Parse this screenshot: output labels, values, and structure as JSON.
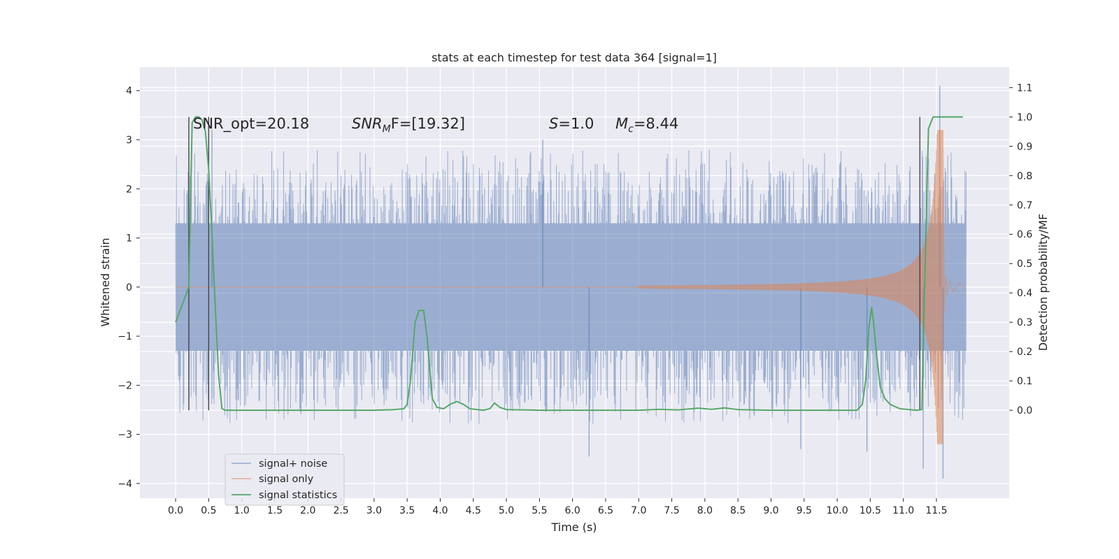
{
  "chart_data": {
    "type": "line",
    "title": "stats at each timestep for test data 364 [signal=1]",
    "xlabel": "Time (s)",
    "ylabel": "Whitened strain",
    "y2label": "Detection probability/MF",
    "xlim": [
      -0.54,
      12.6
    ],
    "ylim": [
      -4.3,
      4.48
    ],
    "y2lim": [
      -0.3,
      1.17
    ],
    "xticks": [
      "0.0",
      "0.5",
      "1.0",
      "1.5",
      "2.0",
      "2.5",
      "3.0",
      "3.5",
      "4.0",
      "4.5",
      "5.0",
      "5.5",
      "6.0",
      "6.5",
      "7.0",
      "7.5",
      "8.0",
      "8.5",
      "9.0",
      "9.5",
      "10.0",
      "10.5",
      "11.0",
      "11.5"
    ],
    "yticks": [
      "4",
      "3",
      "2",
      "1",
      "0",
      "−1",
      "−2",
      "−3",
      "−4"
    ],
    "y2ticks": [
      "1.1",
      "1.0",
      "0.9",
      "0.8",
      "0.7",
      "0.6",
      "0.5",
      "0.4",
      "0.3",
      "0.2",
      "0.1",
      "0.0"
    ],
    "grid": true,
    "legend_position": "lower-left",
    "annotations": {
      "snr_opt": "SNR_opt=20.18",
      "snr_mf_label": "SNR",
      "snr_mf_sub": "M",
      "snr_mf_tail": "F=[19.32]",
      "s_label": "S",
      "s_value": "=1.0",
      "mc_label": "M",
      "mc_sub": "c",
      "mc_value": "=8.44"
    },
    "vertical_markers": [
      0.2,
      0.5,
      11.25
    ],
    "series": [
      {
        "name": "signal+ noise",
        "color": "#4c72b0",
        "kind": "noise",
        "t_start": 0.0,
        "t_end": 11.95,
        "envelope_core": 1.3,
        "typical_peak": 2.4,
        "extreme_points": [
          [
            0.55,
            3.2
          ],
          [
            5.55,
            3.0
          ],
          [
            11.55,
            4.1
          ],
          [
            6.25,
            -3.45
          ],
          [
            9.45,
            -3.3
          ],
          [
            10.45,
            -3.35
          ],
          [
            11.3,
            -3.7
          ],
          [
            11.6,
            -3.9
          ]
        ]
      },
      {
        "name": "signal only",
        "color": "#dd8452",
        "kind": "chirp",
        "t_start": 7.0,
        "t_merger": 11.6,
        "amp_start": 0.03,
        "amp_peak": 3.2
      },
      {
        "name": "signal statistics",
        "color": "#55a868",
        "axis": "right",
        "points": [
          [
            0.0,
            0.3
          ],
          [
            0.2,
            0.42
          ],
          [
            0.25,
            0.98
          ],
          [
            0.3,
            1.0
          ],
          [
            0.35,
            1.0
          ],
          [
            0.4,
            0.99
          ],
          [
            0.45,
            0.95
          ],
          [
            0.5,
            0.82
          ],
          [
            0.55,
            0.6
          ],
          [
            0.6,
            0.35
          ],
          [
            0.65,
            0.12
          ],
          [
            0.7,
            0.005
          ],
          [
            0.75,
            0.0
          ],
          [
            1.0,
            0.0
          ],
          [
            2.0,
            0.0
          ],
          [
            3.0,
            0.0
          ],
          [
            3.3,
            0.002
          ],
          [
            3.45,
            0.005
          ],
          [
            3.5,
            0.02
          ],
          [
            3.55,
            0.1
          ],
          [
            3.62,
            0.3
          ],
          [
            3.68,
            0.34
          ],
          [
            3.75,
            0.34
          ],
          [
            3.8,
            0.25
          ],
          [
            3.88,
            0.04
          ],
          [
            3.95,
            0.01
          ],
          [
            4.05,
            0.005
          ],
          [
            4.15,
            0.02
          ],
          [
            4.25,
            0.03
          ],
          [
            4.35,
            0.02
          ],
          [
            4.45,
            0.005
          ],
          [
            4.65,
            0.0
          ],
          [
            4.75,
            0.005
          ],
          [
            4.82,
            0.025
          ],
          [
            4.9,
            0.01
          ],
          [
            5.0,
            0.002
          ],
          [
            5.5,
            0.0
          ],
          [
            6.5,
            0.0
          ],
          [
            7.0,
            0.0
          ],
          [
            7.3,
            0.003
          ],
          [
            7.6,
            0.001
          ],
          [
            7.9,
            0.007
          ],
          [
            8.1,
            0.003
          ],
          [
            8.3,
            0.008
          ],
          [
            8.5,
            0.002
          ],
          [
            9.0,
            0.0
          ],
          [
            10.3,
            0.0
          ],
          [
            10.38,
            0.02
          ],
          [
            10.43,
            0.1
          ],
          [
            10.48,
            0.28
          ],
          [
            10.52,
            0.35
          ],
          [
            10.55,
            0.3
          ],
          [
            10.6,
            0.18
          ],
          [
            10.65,
            0.08
          ],
          [
            10.72,
            0.04
          ],
          [
            10.8,
            0.02
          ],
          [
            10.95,
            0.005
          ],
          [
            11.2,
            0.0
          ],
          [
            11.28,
            0.002
          ],
          [
            11.33,
            0.5
          ],
          [
            11.38,
            0.96
          ],
          [
            11.45,
            1.0
          ],
          [
            11.6,
            1.0
          ],
          [
            11.9,
            1.0
          ]
        ]
      }
    ]
  }
}
